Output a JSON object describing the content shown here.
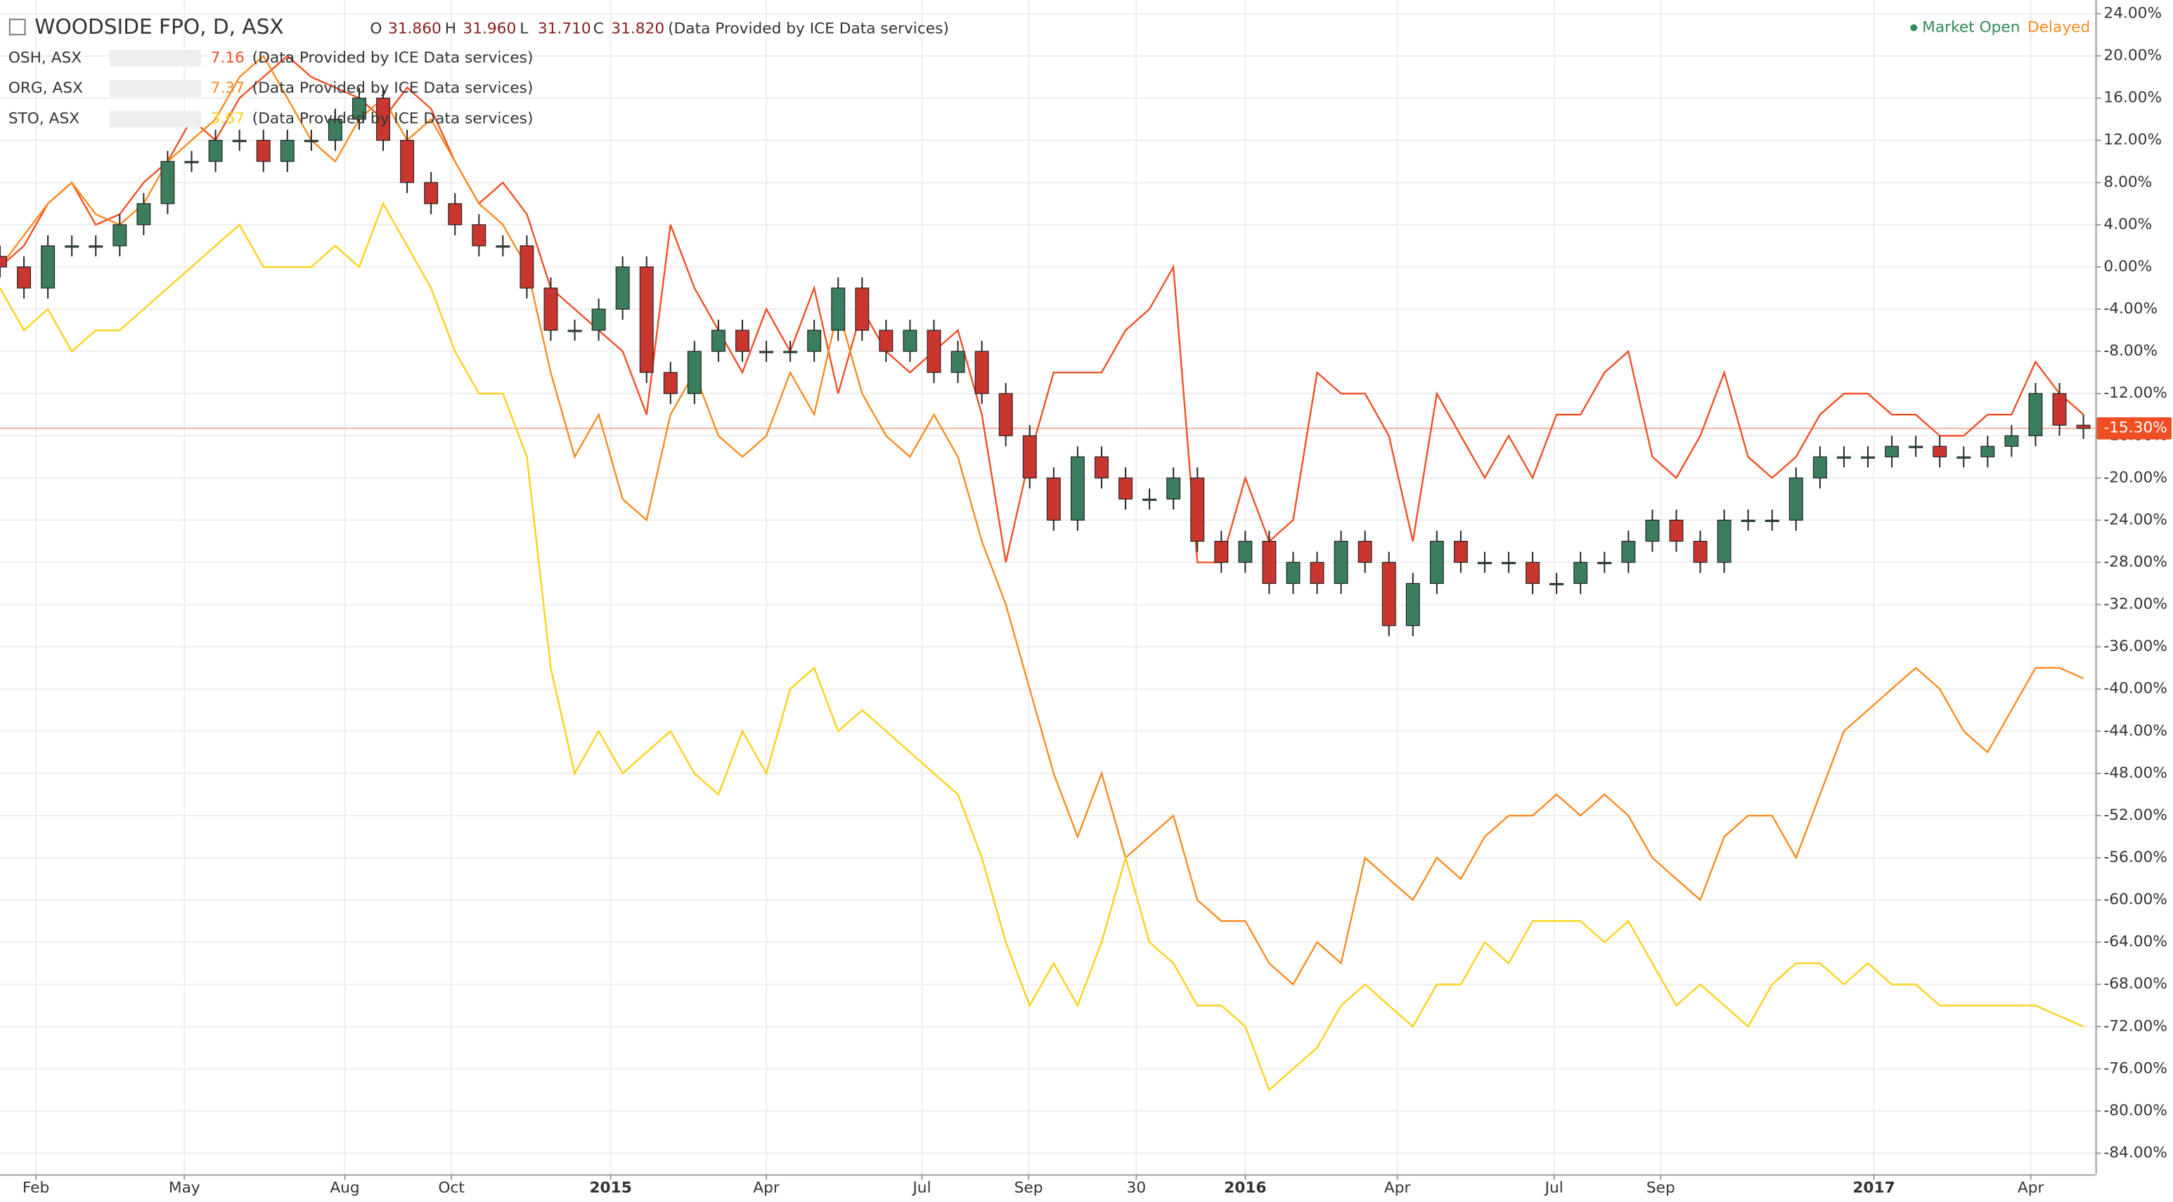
{
  "chart_data": {
    "type": "candlestick-compare",
    "title": "WOODSIDE FPO, D, ASX",
    "ohlc_keys": [
      "O",
      "H",
      "L",
      "C"
    ],
    "ohlc_values": [
      {
        "value": 31.86,
        "label": "31.860"
      },
      {
        "value": 31.96,
        "label": "31.960"
      },
      {
        "value": 31.71,
        "label": "31.710"
      },
      {
        "value": 31.82,
        "label": "31.820"
      }
    ],
    "source": "(Data Provided by ICE Data services)",
    "status": "Market Open",
    "status_note": "Delayed",
    "last_price": {
      "value": -15.3,
      "label": "-15.30%"
    },
    "x": [
      0,
      2,
      4,
      6,
      8,
      10,
      12,
      14,
      16,
      18,
      20,
      22,
      24,
      26,
      28,
      30,
      32,
      34,
      36,
      38,
      40,
      42,
      44,
      46,
      48,
      50,
      52,
      54,
      56,
      58,
      60,
      62,
      64,
      66,
      68,
      70,
      72,
      74,
      76,
      78,
      80,
      82,
      84,
      86,
      88,
      90,
      92,
      94,
      96,
      98,
      100,
      102,
      104,
      106,
      108,
      110,
      112,
      114,
      116,
      118,
      120,
      122,
      124,
      126,
      128,
      130,
      132,
      134,
      136,
      138,
      140,
      142,
      144,
      146,
      148,
      150,
      152,
      154,
      156,
      158,
      160,
      162,
      164,
      166,
      168,
      170,
      172,
      174
    ],
    "candles": {
      "up_color": "#3b7d5c",
      "down_color": "#c9362f",
      "open": [
        1,
        0,
        -2,
        2,
        2,
        2,
        4,
        6,
        10,
        10,
        12,
        12,
        10,
        12,
        12,
        14,
        16,
        12,
        8,
        6,
        4,
        2,
        2,
        -2,
        -6,
        -6,
        -4,
        0,
        -10,
        -12,
        -8,
        -6,
        -8,
        -8,
        -8,
        -6,
        -2,
        -6,
        -8,
        -6,
        -10,
        -8,
        -12,
        -16,
        -20,
        -24,
        -18,
        -20,
        -22,
        -22,
        -20,
        -26,
        -28,
        -26,
        -30,
        -28,
        -30,
        -26,
        -28,
        -34,
        -30,
        -26,
        -28,
        -28,
        -28,
        -30,
        -30,
        -28,
        -28,
        -26,
        -24,
        -26,
        -28,
        -24,
        -24,
        -24,
        -20,
        -18,
        -18,
        -18,
        -17,
        -17,
        -18,
        -18,
        -17,
        -16,
        -12,
        -15
      ],
      "high": [
        2,
        1,
        3,
        3,
        3,
        5,
        7,
        11,
        11,
        13,
        13,
        13,
        13,
        13,
        15,
        17,
        17,
        13,
        9,
        7,
        5,
        3,
        3,
        -1,
        -5,
        -3,
        1,
        1,
        -9,
        -7,
        -5,
        -5,
        -7,
        -7,
        -5,
        -1,
        -1,
        -5,
        -5,
        -5,
        -7,
        -7,
        -11,
        -15,
        -19,
        -17,
        -17,
        -19,
        -21,
        -19,
        -19,
        -25,
        -25,
        -25,
        -27,
        -27,
        -25,
        -25,
        -27,
        -29,
        -25,
        -25,
        -27,
        -27,
        -27,
        -29,
        -27,
        -27,
        -25,
        -23,
        -23,
        -25,
        -23,
        -23,
        -23,
        -19,
        -17,
        -17,
        -17,
        -16,
        -16,
        -16,
        -17,
        -16,
        -15,
        -11,
        -11,
        -14
      ],
      "low": [
        -1,
        -3,
        -3,
        1,
        1,
        1,
        3,
        5,
        9,
        9,
        11,
        9,
        9,
        11,
        11,
        13,
        11,
        7,
        5,
        3,
        1,
        1,
        -3,
        -7,
        -7,
        -7,
        -5,
        -11,
        -13,
        -13,
        -9,
        -9,
        -9,
        -9,
        -9,
        -7,
        -7,
        -9,
        -9,
        -11,
        -11,
        -13,
        -17,
        -21,
        -25,
        -25,
        -21,
        -23,
        -23,
        -23,
        -27,
        -29,
        -29,
        -31,
        -31,
        -31,
        -31,
        -29,
        -35,
        -35,
        -31,
        -29,
        -29,
        -29,
        -31,
        -31,
        -31,
        -29,
        -29,
        -27,
        -27,
        -29,
        -29,
        -25,
        -25,
        -25,
        -21,
        -19,
        -19,
        -19,
        -18,
        -19,
        -19,
        -19,
        -18,
        -17,
        -16,
        -16.3
      ],
      "close": [
        0,
        -2,
        2,
        2,
        2,
        4,
        6,
        10,
        10,
        12,
        12,
        10,
        12,
        12,
        14,
        16,
        12,
        8,
        6,
        4,
        2,
        2,
        -2,
        -6,
        -6,
        -4,
        0,
        -10,
        -12,
        -8,
        -6,
        -8,
        -8,
        -8,
        -6,
        -2,
        -6,
        -8,
        -6,
        -10,
        -8,
        -12,
        -16,
        -20,
        -24,
        -18,
        -20,
        -22,
        -22,
        -20,
        -26,
        -28,
        -26,
        -30,
        -28,
        -30,
        -26,
        -28,
        -34,
        -30,
        -26,
        -28,
        -28,
        -28,
        -30,
        -30,
        -28,
        -28,
        -26,
        -24,
        -26,
        -28,
        -24,
        -24,
        -24,
        -20,
        -18,
        -18,
        -18,
        -17,
        -17,
        -18,
        -18,
        -17,
        -16,
        -12,
        -15,
        -15.3
      ]
    },
    "series": [
      {
        "name": "OSH, ASX",
        "color": "#f04e23",
        "last": 7.16,
        "values": [
          0,
          2,
          6,
          8,
          4,
          5,
          8,
          10,
          14,
          12,
          16,
          18,
          20,
          18,
          17,
          16,
          14,
          17,
          15,
          10,
          6,
          8,
          5,
          -2,
          -4,
          -6,
          -8,
          -14,
          4,
          -2,
          -6,
          -10,
          -4,
          -8,
          -2,
          -12,
          -4,
          -8,
          -10,
          -8,
          -6,
          -14,
          -28,
          -18,
          -10,
          -10,
          -10,
          -6,
          -4,
          0,
          -28,
          -28,
          -20,
          -26,
          -24,
          -10,
          -12,
          -12,
          -16,
          -26,
          -12,
          -16,
          -20,
          -16,
          -20,
          -14,
          -14,
          -10,
          -8,
          -18,
          -20,
          -16,
          -10,
          -18,
          -20,
          -18,
          -14,
          -12,
          -12,
          -14,
          -14,
          -16,
          -16,
          -14,
          -14,
          -9,
          -12,
          -14
        ]
      },
      {
        "name": "ORG, ASX",
        "color": "#fb8a1e",
        "last": 7.37,
        "values": [
          0,
          3,
          6,
          8,
          5,
          4,
          6,
          10,
          12,
          14,
          18,
          20,
          16,
          12,
          10,
          14,
          16,
          12,
          14,
          10,
          6,
          4,
          0,
          -10,
          -18,
          -14,
          -22,
          -24,
          -14,
          -10,
          -16,
          -18,
          -16,
          -10,
          -14,
          -4,
          -12,
          -16,
          -18,
          -14,
          -18,
          -26,
          -32,
          -40,
          -48,
          -54,
          -48,
          -56,
          -54,
          -52,
          -60,
          -62,
          -62,
          -66,
          -68,
          -64,
          -66,
          -56,
          -58,
          -60,
          -56,
          -58,
          -54,
          -52,
          -52,
          -50,
          -52,
          -50,
          -52,
          -56,
          -58,
          -60,
          -54,
          -52,
          -52,
          -56,
          -50,
          -44,
          -42,
          -40,
          -38,
          -40,
          -44,
          -46,
          -42,
          -38,
          -38,
          -39
        ]
      },
      {
        "name": "STO, ASX",
        "color": "#fdd017",
        "last": 3.67,
        "values": [
          -2,
          -6,
          -4,
          -8,
          -6,
          -6,
          -4,
          -2,
          0,
          2,
          4,
          0,
          0,
          0,
          2,
          0,
          6,
          2,
          -2,
          -8,
          -12,
          -12,
          -18,
          -38,
          -48,
          -44,
          -48,
          -46,
          -44,
          -48,
          -50,
          -44,
          -48,
          -40,
          -38,
          -44,
          -42,
          -44,
          -46,
          -48,
          -50,
          -56,
          -64,
          -70,
          -66,
          -70,
          -64,
          -56,
          -64,
          -66,
          -70,
          -70,
          -72,
          -78,
          -76,
          -74,
          -70,
          -68,
          -70,
          -72,
          -68,
          -68,
          -64,
          -66,
          -62,
          -62,
          -62,
          -64,
          -62,
          -66,
          -70,
          -68,
          -70,
          -72,
          -68,
          -66,
          -66,
          -68,
          -66,
          -68,
          -68,
          -70,
          -70,
          -70,
          -70,
          -70,
          -71,
          -72
        ]
      }
    ],
    "xlim": [
      0,
      175
    ],
    "xticks": [
      {
        "value": 3,
        "label": "Feb"
      },
      {
        "value": 15.4,
        "label": "May"
      },
      {
        "value": 28.8,
        "label": "Aug"
      },
      {
        "value": 37.7,
        "label": "Oct"
      },
      {
        "value": 51,
        "label": "2015"
      },
      {
        "value": 64,
        "label": "Apr"
      },
      {
        "value": 77,
        "label": "Jul"
      },
      {
        "value": 85.9,
        "label": "Sep"
      },
      {
        "value": 94.9,
        "label": "30"
      },
      {
        "value": 104,
        "label": "2016"
      },
      {
        "value": 116.7,
        "label": "Apr"
      },
      {
        "value": 129.8,
        "label": "Jul"
      },
      {
        "value": 138.7,
        "label": "Sep"
      },
      {
        "value": 156.5,
        "label": "2017"
      },
      {
        "value": 169.6,
        "label": "Apr"
      }
    ],
    "ylim": [
      -86,
      25.3
    ],
    "yticks": [
      {
        "value": 24,
        "label": "24.00%"
      },
      {
        "value": 20,
        "label": "20.00%"
      },
      {
        "value": 16,
        "label": "16.00%"
      },
      {
        "value": 12,
        "label": "12.00%"
      },
      {
        "value": 8,
        "label": "8.00%"
      },
      {
        "value": 4,
        "label": "4.00%"
      },
      {
        "value": 0,
        "label": "0.00%"
      },
      {
        "value": -4,
        "label": "-4.00%"
      },
      {
        "value": -8,
        "label": "-8.00%"
      },
      {
        "value": -12,
        "label": "-12.00%"
      },
      {
        "value": -16,
        "label": "-16.00%"
      },
      {
        "value": -20,
        "label": "-20.00%"
      },
      {
        "value": -24,
        "label": "-24.00%"
      },
      {
        "value": -28,
        "label": "-28.00%"
      },
      {
        "value": -32,
        "label": "-32.00%"
      },
      {
        "value": -36,
        "label": "-36.00%"
      },
      {
        "value": -40,
        "label": "-40.00%"
      },
      {
        "value": -44,
        "label": "-44.00%"
      },
      {
        "value": -48,
        "label": "-48.00%"
      },
      {
        "value": -52,
        "label": "-52.00%"
      },
      {
        "value": -56,
        "label": "-56.00%"
      },
      {
        "value": -60,
        "label": "-60.00%"
      },
      {
        "value": -64,
        "label": "-64.00%"
      },
      {
        "value": -68,
        "label": "-68.00%"
      },
      {
        "value": -72,
        "label": "-72.00%"
      },
      {
        "value": -76,
        "label": "-76.00%"
      },
      {
        "value": -80,
        "label": "-80.00%"
      },
      {
        "value": -84,
        "label": "-84.00%"
      }
    ],
    "grid": true
  }
}
